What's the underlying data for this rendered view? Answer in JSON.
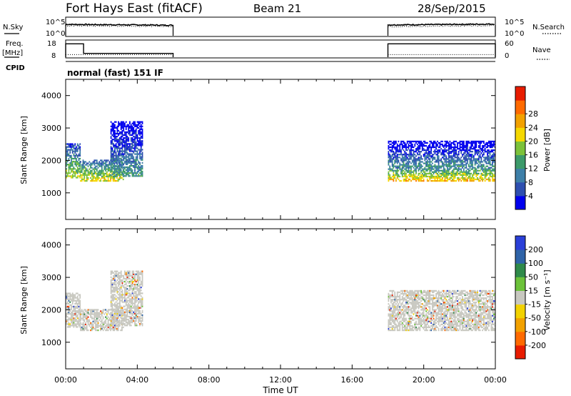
{
  "header": {
    "station": "Fort Hays East (fitACF)",
    "beam": "Beam 21",
    "date": "28/Sep/2015"
  },
  "panel_labels": {
    "nsky": "N.Sky",
    "nsky_ticks": [
      "10^5",
      "10^0"
    ],
    "nsearch": "N.Search",
    "nsearch_ticks": [
      "10^5",
      "10^0"
    ],
    "freq_line1": "Freq.",
    "freq_line2": "[MHz]",
    "freq_ticks": [
      "18",
      "8"
    ],
    "nave": "Nave",
    "nave_ticks": [
      "60",
      "0"
    ],
    "cpid": "CPID",
    "cpid_text": "normal (fast) 151 IF"
  },
  "chart_data": [
    {
      "type": "line",
      "name": "noise-panel",
      "segments": [
        [
          0,
          6
        ],
        [
          18,
          24
        ]
      ],
      "series": [
        {
          "name": "N.Sky",
          "style": "solid",
          "values": [
            [
              0,
              3.6
            ],
            [
              6,
              3.3
            ],
            [
              18,
              3.4
            ],
            [
              24,
              3.7
            ]
          ]
        },
        {
          "name": "N.Search",
          "style": "dotted",
          "values": [
            [
              0,
              3.1
            ],
            [
              6,
              2.9
            ],
            [
              18,
              2.8
            ],
            [
              24,
              3.2
            ]
          ]
        }
      ]
    },
    {
      "type": "line",
      "name": "freq-nave-panel",
      "segments": [
        [
          0,
          6
        ],
        [
          18,
          24
        ]
      ],
      "series": [
        {
          "name": "Freq.",
          "units": "MHz",
          "style": "solid",
          "steps": [
            [
              0,
              1,
              16.5
            ],
            [
              1,
              6,
              10.4
            ],
            [
              18,
              24,
              16.5
            ]
          ]
        },
        {
          "name": "Nave",
          "style": "dotted",
          "steps": [
            [
              0,
              6,
              10
            ],
            [
              18,
              24,
              10
            ]
          ]
        }
      ]
    },
    {
      "type": "heatmap",
      "name": "power",
      "xlabel": "",
      "ylabel": "Slant Range [km]",
      "ylim": [
        180,
        4500
      ],
      "yticks": [
        1000,
        2000,
        3000,
        4000
      ],
      "colorbar": {
        "label": "Power [dB]",
        "ticks": [
          "4",
          "8",
          "12",
          "16",
          "20",
          "24",
          "28"
        ],
        "colors": [
          "#0000ee",
          "#2e4fb0",
          "#3d7fa8",
          "#3c9a6a",
          "#7cc23a",
          "#f5d800",
          "#f2a100",
          "#ff6a00",
          "#e81c00"
        ]
      },
      "echo_bands": [
        {
          "t0": 0,
          "t1": 0.8,
          "r0": 1450,
          "r1": 2500,
          "p": 16
        },
        {
          "t0": 0.8,
          "t1": 3.2,
          "r0": 1350,
          "r1": 2000,
          "p": 18
        },
        {
          "t0": 2.5,
          "t1": 4.3,
          "r0": 1500,
          "r1": 3200,
          "p": 10
        },
        {
          "t0": 18,
          "t1": 24,
          "r0": 1350,
          "r1": 1800,
          "p": 20
        },
        {
          "t0": 18,
          "t1": 24,
          "r0": 1800,
          "r1": 2600,
          "p": 9
        }
      ]
    },
    {
      "type": "heatmap",
      "name": "velocity",
      "xlabel": "Time UT",
      "ylabel": "Slant Range [km]",
      "ylim": [
        180,
        4500
      ],
      "yticks": [
        1000,
        2000,
        3000,
        4000
      ],
      "xticks": [
        "00:00",
        "04:00",
        "08:00",
        "12:00",
        "16:00",
        "20:00",
        "00:00"
      ],
      "xlim": [
        0,
        24
      ],
      "colorbar": {
        "label": "Velocity [m s⁻¹]",
        "ticks": [
          "200",
          "100",
          "50",
          "15",
          "-15",
          "-50",
          "-100",
          "-200"
        ],
        "colors": [
          "#2a3fd8",
          "#2f64a8",
          "#2f8a4a",
          "#6cc23a",
          "#c8c8c0",
          "#f2d200",
          "#f2a100",
          "#ff6a00",
          "#e81c00"
        ]
      },
      "echo_bands": [
        {
          "t0": 0,
          "t1": 0.8,
          "r0": 1450,
          "r1": 2500,
          "v": 0
        },
        {
          "t0": 0.8,
          "t1": 3.2,
          "r0": 1350,
          "r1": 2000,
          "v": 0
        },
        {
          "t0": 2.5,
          "t1": 4.3,
          "r0": 1500,
          "r1": 3200,
          "v": 0
        },
        {
          "t0": 18,
          "t1": 24,
          "r0": 1350,
          "r1": 1800,
          "v": 0
        },
        {
          "t0": 18,
          "t1": 24,
          "r0": 1800,
          "r1": 2600,
          "v": -20
        }
      ]
    }
  ]
}
